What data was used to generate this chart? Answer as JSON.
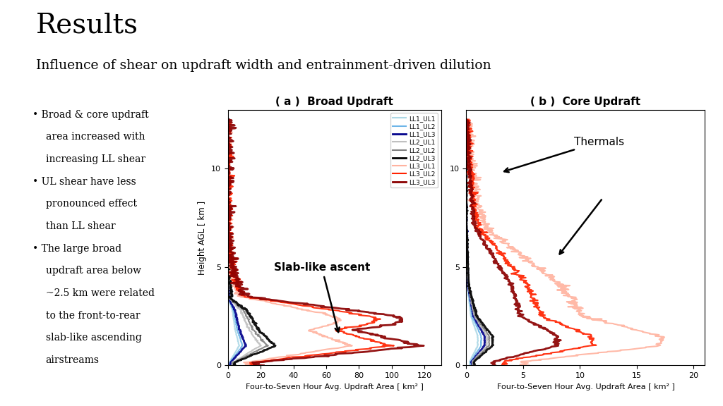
{
  "title": "Results",
  "subtitle": "Influence of shear on updraft width and entrainment-driven dilution",
  "plot_a_title": "( a )  Broad Updraft",
  "plot_b_title": "( b )  Core Updraft",
  "xlabel": "Four-to-Seven Hour Avg. Updraft Area [ km² ]",
  "ylabel": "Height AGL [ km ]",
  "legend_labels": [
    "LL1_UL1",
    "LL1_UL2",
    "LL1_UL3",
    "LL2_UL1",
    "LL2_UL2",
    "LL2_UL3",
    "LL3_UL1",
    "LL3_UL2",
    "LL3_UL3"
  ],
  "legend_colors": [
    "#add8e6",
    "#6eb5e8",
    "#00008b",
    "#c0c0c0",
    "#808080",
    "#000000",
    "#ffb3a0",
    "#ff2200",
    "#8b0000"
  ],
  "legend_lw": [
    1.5,
    1.5,
    2.0,
    1.5,
    1.5,
    2.0,
    1.5,
    1.5,
    2.0
  ],
  "bullet_points": [
    "Broad & core updraft\narea increased with\nincreasing LL shear",
    "UL shear have less\npronounced effect\nthan LL shear",
    "The large broad\nupdraft area below\n~2.5 km were related\nto the front-to-rear\nslab-like ascending\nairstreams"
  ],
  "annotation_a": "Slab-like ascent",
  "annotation_b": "Thermals",
  "bg_color": "#ffffff",
  "broad_xlim": [
    0,
    130
  ],
  "broad_xticks": [
    0,
    20,
    40,
    60,
    80,
    100,
    120
  ],
  "core_xlim": [
    0,
    21
  ],
  "core_xticks": [
    0,
    5,
    10,
    15,
    20
  ],
  "ylim": [
    0,
    13
  ],
  "yticks": [
    0,
    5,
    10
  ]
}
